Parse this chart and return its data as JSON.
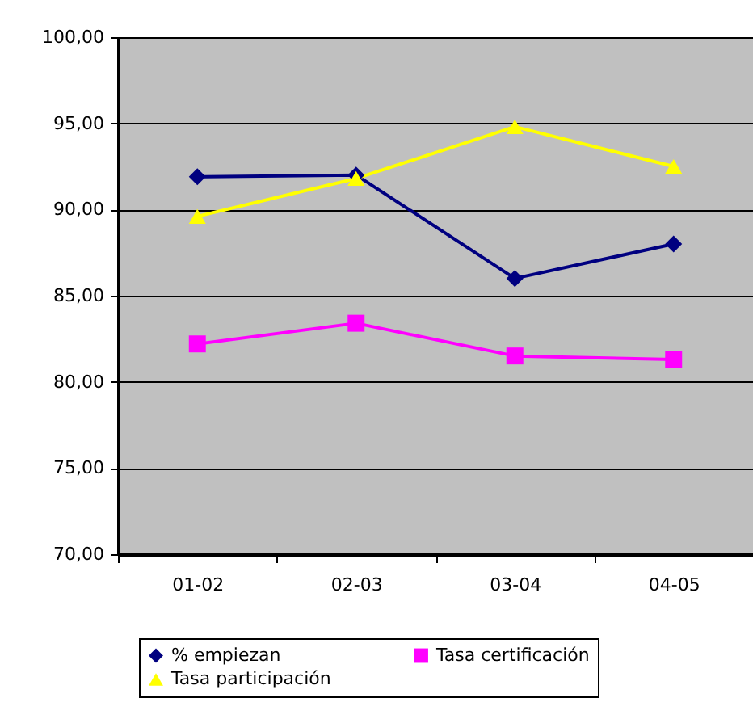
{
  "chart_data": {
    "type": "line",
    "categories": [
      "01-02",
      "02-03",
      "03-04",
      "04-05"
    ],
    "series": [
      {
        "name": "% empiezan",
        "color": "#000080",
        "marker": "diamond",
        "values": [
          91.9,
          92.0,
          86.0,
          88.0
        ]
      },
      {
        "name": "Tasa certificación",
        "color": "#ff00ff",
        "marker": "square",
        "values": [
          82.2,
          83.4,
          81.5,
          81.3
        ]
      },
      {
        "name": "Tasa participación",
        "color": "#ffff00",
        "marker": "triangle",
        "values": [
          89.6,
          91.8,
          94.8,
          92.5
        ]
      }
    ],
    "ylim": [
      70,
      100
    ],
    "yticks": [
      {
        "value": 70,
        "label": "70,00"
      },
      {
        "value": 75,
        "label": "75,00"
      },
      {
        "value": 80,
        "label": "80,00"
      },
      {
        "value": 85,
        "label": "85,00"
      },
      {
        "value": 90,
        "label": "90,00"
      },
      {
        "value": 95,
        "label": "95,00"
      },
      {
        "value": 100,
        "label": "100,00"
      }
    ],
    "grid": "y",
    "legend": "bottom",
    "line_style": "solid"
  }
}
